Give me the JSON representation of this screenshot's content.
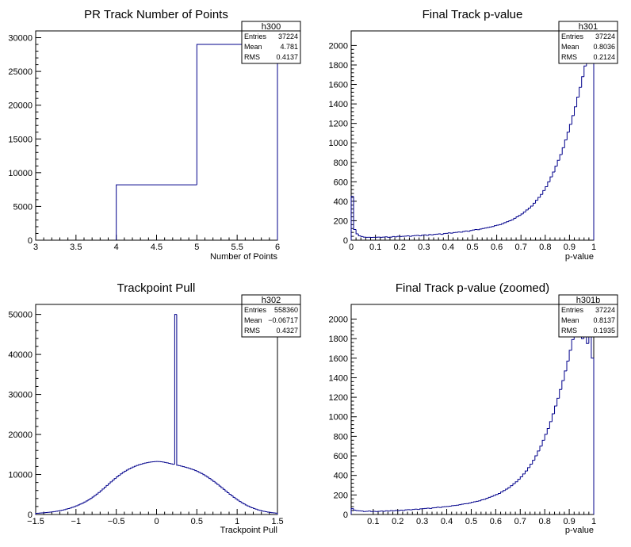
{
  "chart_data": [
    {
      "type": "histogram",
      "hist_name": "h300",
      "title": "PR Track Number of Points",
      "xlabel": "Number of Points",
      "ylabel": "",
      "xlim": [
        3,
        6
      ],
      "ylim": [
        0,
        31000
      ],
      "x_ticks": [
        "3",
        "3.5",
        "4",
        "4.5",
        "5",
        "5.5",
        "6"
      ],
      "y_ticks": [
        "0",
        "5000",
        "10000",
        "15000",
        "20000",
        "25000",
        "30000"
      ],
      "bin_edges": [
        4,
        5,
        6
      ],
      "values": [
        8200,
        29000
      ],
      "stats": [
        {
          "label": "Entries",
          "value": "37224"
        },
        {
          "label": "Mean",
          "value": "4.781"
        },
        {
          "label": "RMS",
          "value": "0.4137"
        }
      ],
      "color": "#00008b"
    },
    {
      "type": "histogram",
      "hist_name": "h301",
      "title": "Final Track p-value",
      "xlabel": "p-value",
      "ylabel": "",
      "xlim": [
        0,
        1
      ],
      "ylim": [
        0,
        2150
      ],
      "x_ticks": [
        "0",
        "0.1",
        "0.2",
        "0.3",
        "0.4",
        "0.5",
        "0.6",
        "0.7",
        "0.8",
        "0.9",
        "1"
      ],
      "y_ticks": [
        "0",
        "200",
        "400",
        "600",
        "800",
        "1000",
        "1200",
        "1400",
        "1600",
        "1800",
        "2000"
      ],
      "bin_start": 0,
      "bin_width": 0.01,
      "values": [
        450,
        110,
        65,
        45,
        38,
        32,
        30,
        30,
        28,
        30,
        30,
        32,
        30,
        32,
        35,
        30,
        32,
        38,
        35,
        40,
        38,
        40,
        42,
        45,
        40,
        45,
        48,
        50,
        45,
        52,
        55,
        50,
        58,
        55,
        60,
        62,
        65,
        60,
        68,
        70,
        75,
        72,
        78,
        80,
        85,
        82,
        90,
        95,
        92,
        100,
        105,
        110,
        108,
        115,
        120,
        125,
        130,
        135,
        140,
        150,
        155,
        160,
        170,
        180,
        190,
        200,
        210,
        225,
        240,
        255,
        270,
        290,
        310,
        330,
        350,
        380,
        410,
        440,
        470,
        510,
        550,
        600,
        650,
        700,
        760,
        820,
        880,
        950,
        1030,
        1110,
        1190,
        1280,
        1370,
        1470,
        1570,
        1680,
        1790,
        1900,
        1850,
        1950
      ],
      "stats": [
        {
          "label": "Entries",
          "value": "37224"
        },
        {
          "label": "Mean",
          "value": "0.8036"
        },
        {
          "label": "RMS",
          "value": "0.2124"
        }
      ],
      "color": "#00008b"
    },
    {
      "type": "histogram",
      "hist_name": "h302",
      "title": "Trackpoint Pull",
      "xlabel": "Trackpoint Pull",
      "ylabel": "",
      "xlim": [
        -1.5,
        1.5
      ],
      "ylim": [
        0,
        52500
      ],
      "x_ticks": [
        "−1.5",
        "−1",
        "−0.5",
        "0",
        "0.5",
        "1",
        "1.5"
      ],
      "y_ticks": [
        "0",
        "10000",
        "20000",
        "30000",
        "40000",
        "50000"
      ],
      "bin_start": -1.5,
      "bin_width": 0.025,
      "values": [
        300,
        330,
        360,
        400,
        440,
        490,
        540,
        600,
        660,
        730,
        810,
        900,
        1000,
        1100,
        1220,
        1350,
        1490,
        1640,
        1810,
        1990,
        2180,
        2390,
        2620,
        2860,
        3120,
        3400,
        3700,
        4020,
        4360,
        4720,
        5100,
        5500,
        5920,
        6360,
        6800,
        7250,
        7700,
        8140,
        8580,
        9000,
        9400,
        9790,
        10150,
        10500,
        10820,
        11100,
        11380,
        11620,
        11850,
        12050,
        12250,
        12420,
        12580,
        12720,
        12850,
        12960,
        13050,
        13120,
        13180,
        13220,
        13250,
        13230,
        13180,
        13100,
        13000,
        12900,
        12780,
        12650,
        12550,
        50000,
        12300,
        12200,
        12080,
        11950,
        11820,
        11680,
        11520,
        11350,
        11160,
        10960,
        10740,
        10500,
        10240,
        9960,
        9660,
        9340,
        9000,
        8650,
        8280,
        7900,
        7500,
        7100,
        6690,
        6280,
        5870,
        5460,
        5060,
        4670,
        4290,
        3930,
        3580,
        3250,
        2940,
        2650,
        2380,
        2130,
        1900,
        1690,
        1500,
        1330,
        1170,
        1030,
        900,
        790,
        690,
        600,
        520,
        450,
        390,
        340
      ],
      "stats": [
        {
          "label": "Entries",
          "value": "558360"
        },
        {
          "label": "Mean",
          "value": "−0.06717"
        },
        {
          "label": "RMS",
          "value": "0.4327"
        }
      ],
      "color": "#00008b"
    },
    {
      "type": "histogram",
      "hist_name": "h301b",
      "title": "Final Track p-value (zoomed)",
      "xlabel": "p-value",
      "ylabel": "",
      "xlim": [
        0.01,
        1
      ],
      "ylim": [
        0,
        2150
      ],
      "x_ticks": [
        "0.1",
        "0.2",
        "0.3",
        "0.4",
        "0.5",
        "0.6",
        "0.7",
        "0.8",
        "0.9",
        "1"
      ],
      "y_ticks": [
        "0",
        "200",
        "400",
        "600",
        "800",
        "1000",
        "1200",
        "1400",
        "1600",
        "1800",
        "2000"
      ],
      "bin_start": 0.01,
      "bin_width": 0.01,
      "values": [
        60,
        45,
        40,
        38,
        35,
        30,
        32,
        35,
        30,
        32,
        30,
        32,
        35,
        32,
        38,
        35,
        40,
        38,
        42,
        40,
        45,
        42,
        48,
        50,
        48,
        52,
        55,
        52,
        58,
        60,
        62,
        65,
        62,
        68,
        70,
        75,
        72,
        78,
        80,
        82,
        85,
        90,
        92,
        95,
        100,
        105,
        110,
        112,
        118,
        125,
        130,
        135,
        140,
        150,
        155,
        165,
        175,
        185,
        195,
        205,
        215,
        230,
        245,
        260,
        275,
        295,
        315,
        335,
        360,
        385,
        415,
        445,
        480,
        515,
        555,
        600,
        650,
        700,
        760,
        820,
        880,
        950,
        1030,
        1110,
        1190,
        1280,
        1370,
        1470,
        1570,
        1680,
        1790,
        1900,
        1850,
        1950,
        1800,
        1900,
        1750,
        1850,
        1600
      ],
      "stats": [
        {
          "label": "Entries",
          "value": "37224"
        },
        {
          "label": "Mean",
          "value": "0.8137"
        },
        {
          "label": "RMS",
          "value": "0.1935"
        }
      ],
      "color": "#00008b"
    }
  ]
}
